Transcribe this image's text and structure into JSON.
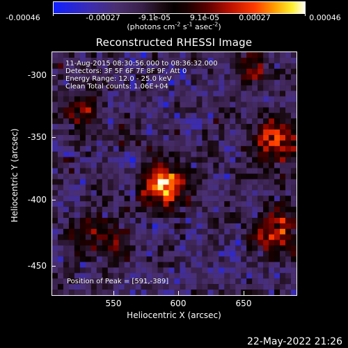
{
  "colorbar": {
    "ticks": [
      "-0.00046",
      "-0.00027",
      "-9.1e-05",
      "9.1e-05",
      "0.00027",
      "0.00046"
    ],
    "units_prefix": "(photons cm",
    "units_cm_exp": "-2",
    "units_mid": " s",
    "units_s_exp": "-1",
    "units_mid2": " asec",
    "units_asec_exp": "-2",
    "units_suffix": ")"
  },
  "title": "Reconstructed RHESSI Image",
  "info": {
    "line1": "11-Aug-2015 08:30:56.000 to 08:36:32.000",
    "line2": "Detectors: 3F 5F 6F 7F 8F 9F, Att 0",
    "line3": "Energy Range: 12.0 - 25.0 keV",
    "line4": "Clean     Total counts: 1.06E+04"
  },
  "peak_text": "Position of Peak = [591,-389]",
  "axes": {
    "xlabel": "Heliocentric X (arcsec)",
    "ylabel": "Heliocentric Y (arcsec)",
    "x_ticks": [
      "550",
      "600",
      "650"
    ],
    "y_ticks": [
      "-300",
      "-350",
      "-400",
      "-450"
    ]
  },
  "timestamp": "22-May-2022 21:26",
  "chart_data": {
    "type": "heatmap",
    "title": "Reconstructed RHESSI Image",
    "xlabel": "Heliocentric X (arcsec)",
    "ylabel": "Heliocentric Y (arcsec)",
    "xlim": [
      503,
      692
    ],
    "ylim": [
      -474,
      -286
    ],
    "zlim": [
      -0.00046,
      0.00046
    ],
    "colorbar_ticks": [
      -0.00046,
      -0.00027,
      -9.1e-05,
      9.1e-05,
      0.00027,
      0.00046
    ],
    "peak": [
      591,
      -389
    ],
    "grid_nx": 44,
    "grid_ny": 44,
    "sources": [
      {
        "x": 591,
        "y": -389,
        "amplitude": 1.0,
        "sigma": 11
      },
      {
        "x": 677,
        "y": -356,
        "amplitude": 0.62,
        "sigma": 13
      },
      {
        "x": 678,
        "y": -425,
        "amplitude": 0.55,
        "sigma": 14
      },
      {
        "x": 524,
        "y": -330,
        "amplitude": 0.35,
        "sigma": 12
      },
      {
        "x": 540,
        "y": -430,
        "amplitude": 0.38,
        "sigma": 16
      },
      {
        "x": 660,
        "y": -300,
        "amplitude": 0.42,
        "sigma": 10
      }
    ]
  }
}
